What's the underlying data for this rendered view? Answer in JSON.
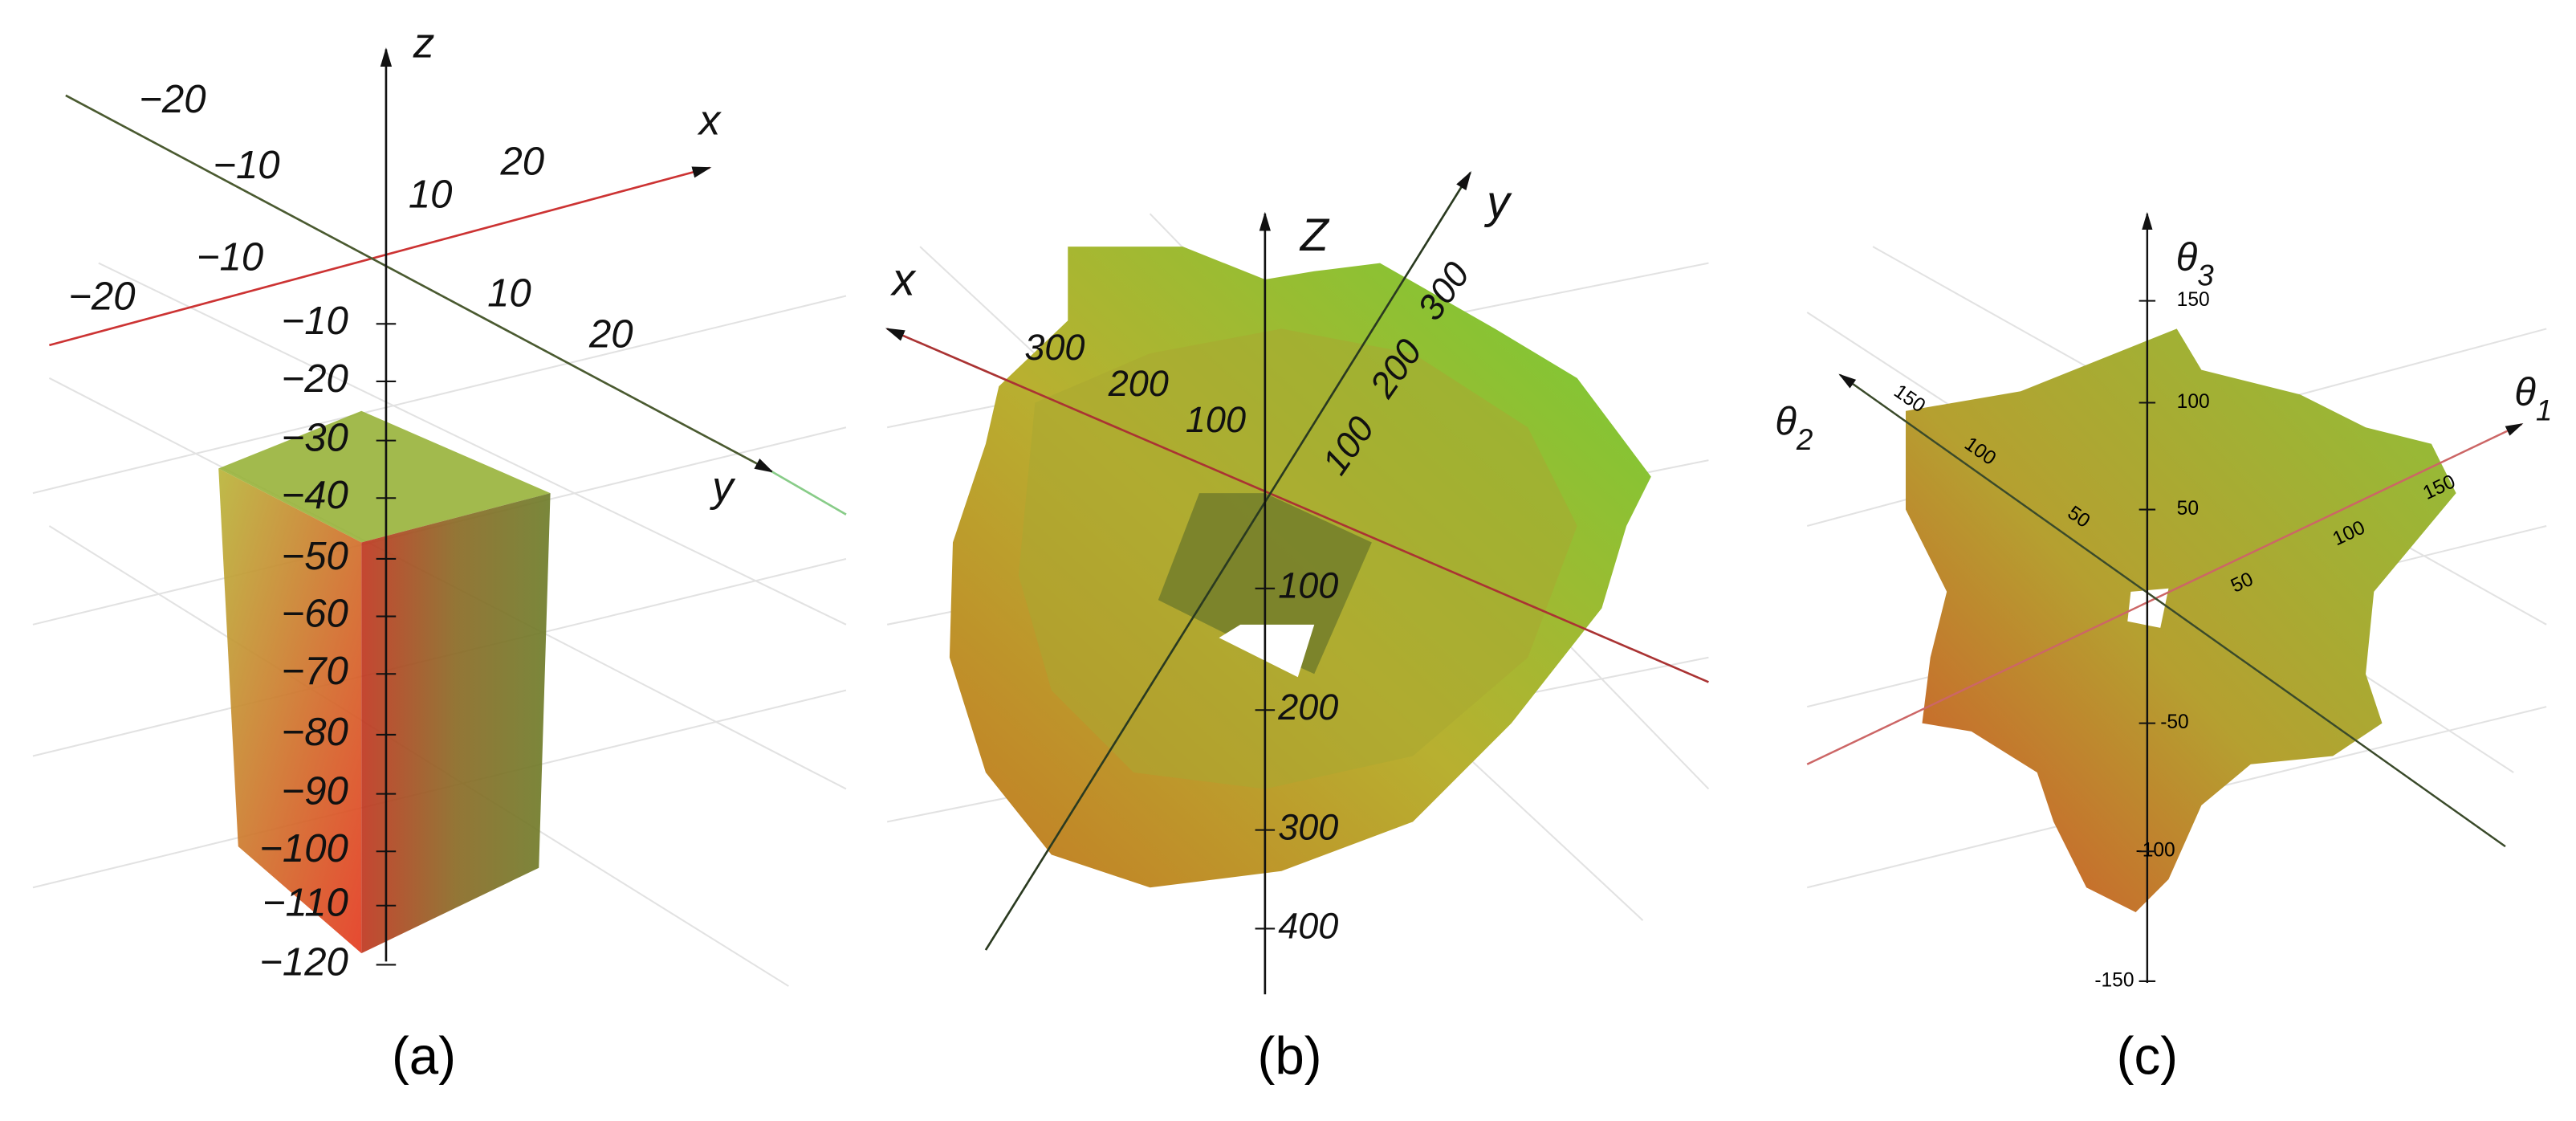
{
  "panels": [
    {
      "caption": "(a)",
      "axis_labels": {
        "z": "z",
        "x": "x",
        "y": "y"
      },
      "x_ticks": [
        "−20",
        "−10",
        "10",
        "20"
      ],
      "y_ticks": [
        "−20",
        "−10",
        "10",
        "20"
      ],
      "z_ticks": [
        "−10",
        "−20",
        "−30",
        "−40",
        "−50",
        "−60",
        "−70",
        "−80",
        "−90",
        "−100",
        "−110",
        "−120"
      ]
    },
    {
      "caption": "(b)",
      "axis_labels": {
        "z": "Z",
        "x": "x",
        "y": "y"
      },
      "x_ticks": [
        "300",
        "200",
        "100"
      ],
      "y_ticks": [
        "100",
        "200",
        "300"
      ],
      "z_ticks": [
        "100",
        "200",
        "300",
        "400"
      ]
    },
    {
      "caption": "(c)",
      "axis_labels": {
        "z": {
          "symbol": "θ",
          "subscript": "3"
        },
        "x": {
          "symbol": "θ",
          "subscript": "1"
        },
        "y": {
          "symbol": "θ",
          "subscript": "2"
        }
      },
      "x_ticks": [
        "150",
        "100",
        "50"
      ],
      "y_ticks": [
        "150",
        "100",
        "50"
      ],
      "z_ticks": [
        "150",
        "100",
        "50",
        "-50",
        "-100",
        "-150"
      ]
    }
  ]
}
